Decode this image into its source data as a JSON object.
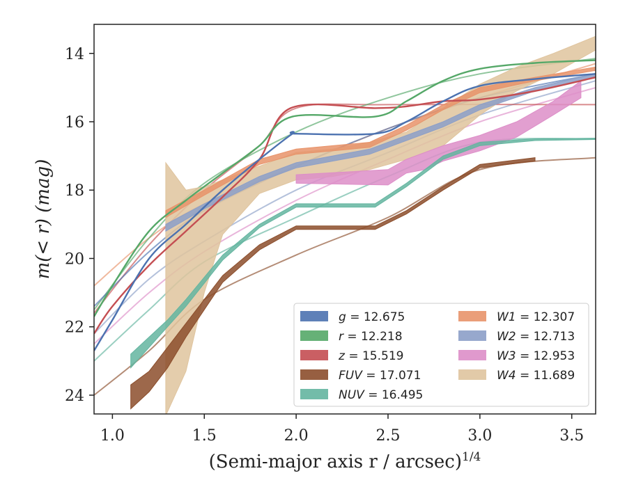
{
  "chart_data": {
    "type": "line",
    "xlabel": "(Semi-major axis r / arcsec)",
    "xlabel_sup": "1/4",
    "ylabel": "m(< r) (mag)",
    "xlim": [
      0.9,
      3.63
    ],
    "ylim": [
      24.55,
      13.15
    ],
    "y_inverted": true,
    "xticks": [
      1.0,
      1.5,
      2.0,
      2.5,
      3.0,
      3.5
    ],
    "xtick_labels": [
      "1.0",
      "1.5",
      "2.0",
      "2.5",
      "3.0",
      "3.5"
    ],
    "yticks": [
      14,
      16,
      18,
      20,
      22,
      24
    ],
    "ytick_labels": [
      "14",
      "16",
      "18",
      "20",
      "22",
      "24"
    ],
    "grid": false,
    "legend_position": "lower-right",
    "legend_columns": 2,
    "series": [
      {
        "name": "g = 12.675",
        "color": "#4c72b0",
        "profile": [
          [
            0.9,
            22.7
          ],
          [
            1.0,
            21.8
          ],
          [
            1.2,
            20.0
          ],
          [
            1.4,
            19.0
          ],
          [
            1.6,
            18.0
          ],
          [
            1.8,
            17.1
          ],
          [
            1.98,
            16.35
          ],
          [
            2.0,
            16.35
          ],
          [
            2.43,
            16.35
          ],
          [
            2.6,
            16.0
          ],
          [
            2.8,
            15.4
          ],
          [
            3.0,
            14.95
          ],
          [
            3.3,
            14.75
          ],
          [
            3.63,
            14.6
          ]
        ],
        "model": [
          [
            0.9,
            21.4
          ],
          [
            1.2,
            19.8
          ],
          [
            1.5,
            18.6
          ],
          [
            2.0,
            17.3
          ],
          [
            2.5,
            16.2
          ],
          [
            3.0,
            15.3
          ],
          [
            3.63,
            14.6
          ]
        ]
      },
      {
        "name": "r = 12.218",
        "color": "#55a868",
        "profile": [
          [
            0.9,
            21.7
          ],
          [
            1.0,
            20.8
          ],
          [
            1.2,
            19.2
          ],
          [
            1.4,
            18.3
          ],
          [
            1.6,
            17.5
          ],
          [
            1.8,
            16.7
          ],
          [
            1.98,
            15.85
          ],
          [
            2.43,
            15.85
          ],
          [
            2.6,
            15.4
          ],
          [
            2.8,
            14.8
          ],
          [
            3.0,
            14.45
          ],
          [
            3.3,
            14.28
          ],
          [
            3.63,
            14.2
          ]
        ],
        "model": [
          [
            0.9,
            21.5
          ],
          [
            1.2,
            19.4
          ],
          [
            1.5,
            17.8
          ],
          [
            2.0,
            16.3
          ],
          [
            2.5,
            15.3
          ],
          [
            3.0,
            14.6
          ],
          [
            3.63,
            14.15
          ]
        ]
      },
      {
        "name": "z = 15.519",
        "color": "#c44e52",
        "profile": [
          [
            0.9,
            22.2
          ],
          [
            1.0,
            21.4
          ],
          [
            1.2,
            20.2
          ],
          [
            1.4,
            19.2
          ],
          [
            1.6,
            18.2
          ],
          [
            1.8,
            17.1
          ],
          [
            1.97,
            15.6
          ],
          [
            2.43,
            15.6
          ],
          [
            2.6,
            15.55
          ],
          [
            2.8,
            15.4
          ],
          [
            3.0,
            15.35
          ],
          [
            3.3,
            15.1
          ],
          [
            3.63,
            14.7
          ]
        ],
        "model": [
          [
            0.9,
            21.6
          ],
          [
            1.2,
            19.6
          ],
          [
            1.5,
            18.0
          ],
          [
            1.8,
            16.7
          ],
          [
            2.0,
            15.6
          ],
          [
            2.5,
            15.5
          ],
          [
            3.63,
            15.5
          ]
        ]
      },
      {
        "name": "FUV = 17.071",
        "color": "#8c4e2c",
        "band": [
          [
            1.1,
            23.7,
            24.4
          ],
          [
            1.2,
            23.3,
            23.9
          ],
          [
            1.3,
            22.6,
            23.2
          ],
          [
            1.4,
            21.9,
            22.3
          ],
          [
            1.5,
            21.2,
            21.5
          ],
          [
            1.6,
            20.5,
            20.7
          ],
          [
            1.8,
            19.6,
            19.75
          ],
          [
            2.0,
            19.05,
            19.15
          ],
          [
            2.43,
            19.05,
            19.15
          ],
          [
            2.6,
            18.6,
            18.7
          ],
          [
            2.8,
            17.9,
            18.0
          ],
          [
            3.0,
            17.25,
            17.35
          ],
          [
            3.3,
            17.05,
            17.15
          ]
        ],
        "model": [
          [
            0.9,
            24.0
          ],
          [
            1.2,
            22.7
          ],
          [
            1.5,
            21.2
          ],
          [
            2.0,
            19.9
          ],
          [
            2.5,
            18.8
          ],
          [
            3.0,
            17.4
          ],
          [
            3.63,
            17.05
          ]
        ]
      },
      {
        "name": "NUV = 16.495",
        "color": "#64b5a0",
        "band": [
          [
            1.1,
            22.8,
            23.2
          ],
          [
            1.3,
            21.8,
            22.0
          ],
          [
            1.4,
            21.2,
            21.4
          ],
          [
            1.6,
            19.9,
            20.05
          ],
          [
            1.8,
            19.0,
            19.1
          ],
          [
            2.0,
            18.4,
            18.5
          ],
          [
            2.43,
            18.4,
            18.5
          ],
          [
            2.6,
            17.8,
            17.9
          ],
          [
            2.8,
            17.0,
            17.1
          ],
          [
            3.0,
            16.6,
            16.7
          ],
          [
            3.3,
            16.5,
            16.55
          ],
          [
            3.63,
            16.48,
            16.52
          ]
        ],
        "model": [
          [
            0.9,
            23.0
          ],
          [
            1.2,
            21.5
          ],
          [
            1.5,
            20.1
          ],
          [
            2.0,
            18.8
          ],
          [
            2.5,
            17.6
          ],
          [
            3.0,
            16.6
          ],
          [
            3.63,
            16.5
          ]
        ]
      },
      {
        "name": "W1 = 12.307",
        "color": "#e8936a",
        "band": [
          [
            1.29,
            18.6,
            18.8
          ],
          [
            1.5,
            18.0,
            18.15
          ],
          [
            1.8,
            17.1,
            17.25
          ],
          [
            2.0,
            16.8,
            16.95
          ],
          [
            2.4,
            16.6,
            16.75
          ],
          [
            2.6,
            16.1,
            16.25
          ],
          [
            2.8,
            15.5,
            15.65
          ],
          [
            3.0,
            15.0,
            15.15
          ],
          [
            3.3,
            14.7,
            14.8
          ],
          [
            3.63,
            14.4,
            14.5
          ]
        ],
        "model": [
          [
            0.9,
            20.8
          ],
          [
            1.2,
            19.4
          ],
          [
            1.5,
            18.4
          ],
          [
            2.0,
            17.3
          ],
          [
            2.5,
            16.2
          ],
          [
            3.0,
            15.3
          ],
          [
            3.63,
            14.3
          ]
        ]
      },
      {
        "name": "W2 = 12.713",
        "color": "#8c9fc8",
        "band": [
          [
            1.29,
            19.0,
            19.2
          ],
          [
            1.5,
            18.4,
            18.55
          ],
          [
            1.8,
            17.6,
            17.75
          ],
          [
            2.0,
            17.2,
            17.35
          ],
          [
            2.4,
            16.8,
            16.95
          ],
          [
            2.8,
            16.0,
            16.15
          ],
          [
            3.0,
            15.5,
            15.65
          ],
          [
            3.3,
            15.0,
            15.1
          ],
          [
            3.63,
            14.6,
            14.7
          ]
        ],
        "model": [
          [
            0.9,
            22.2
          ],
          [
            1.2,
            20.6
          ],
          [
            1.5,
            19.5
          ],
          [
            2.0,
            18.0
          ],
          [
            2.5,
            16.9
          ],
          [
            3.0,
            15.8
          ],
          [
            3.63,
            14.8
          ]
        ]
      },
      {
        "name": "W3 = 12.953",
        "color": "#dd8ec8",
        "band": [
          [
            2.0,
            17.55,
            17.8
          ],
          [
            2.5,
            17.4,
            17.85
          ],
          [
            2.6,
            17.1,
            17.5
          ],
          [
            2.7,
            16.9,
            17.4
          ],
          [
            2.8,
            16.7,
            17.15
          ],
          [
            3.0,
            16.4,
            16.85
          ],
          [
            3.2,
            16.0,
            16.45
          ],
          [
            3.4,
            15.4,
            15.8
          ],
          [
            3.55,
            14.8,
            15.3
          ]
        ],
        "model": [
          [
            0.9,
            22.5
          ],
          [
            1.2,
            21.0
          ],
          [
            1.5,
            19.8
          ],
          [
            2.0,
            18.3
          ],
          [
            2.5,
            17.1
          ],
          [
            3.0,
            16.0
          ],
          [
            3.63,
            15.0
          ]
        ]
      },
      {
        "name": "W4 = 11.689",
        "color": "#dfc49e",
        "band": [
          [
            1.29,
            17.2,
            24.6
          ],
          [
            1.4,
            18.0,
            23.3
          ],
          [
            1.5,
            17.9,
            21.0
          ],
          [
            1.6,
            17.7,
            19.3
          ],
          [
            1.8,
            17.3,
            18.1
          ],
          [
            2.0,
            16.9,
            17.7
          ],
          [
            2.2,
            16.8,
            17.6
          ],
          [
            2.4,
            16.6,
            17.4
          ],
          [
            2.6,
            16.3,
            17.1
          ],
          [
            2.8,
            15.6,
            16.7
          ],
          [
            3.0,
            14.9,
            15.8
          ],
          [
            3.2,
            14.4,
            15.1
          ],
          [
            3.4,
            14.0,
            14.6
          ],
          [
            3.63,
            13.5,
            13.9
          ]
        ],
        "model": []
      }
    ],
    "legend_left": [
      {
        "prefix": "g",
        "value": " = 12.675",
        "color": "#4c72b0"
      },
      {
        "prefix": "r",
        "value": " = 12.218",
        "color": "#55a868"
      },
      {
        "prefix": "z",
        "value": " = 15.519",
        "color": "#c44e52"
      },
      {
        "prefix": "FUV",
        "value": " = 17.071",
        "color": "#8c4e2c"
      },
      {
        "prefix": "NUV",
        "value": " = 16.495",
        "color": "#64b5a0"
      }
    ],
    "legend_right": [
      {
        "prefix": "W1",
        "value": " = 12.307",
        "color": "#e8936a"
      },
      {
        "prefix": "W2",
        "value": " = 12.713",
        "color": "#8c9fc8"
      },
      {
        "prefix": "W3",
        "value": " = 12.953",
        "color": "#dd8ec8"
      },
      {
        "prefix": "W4",
        "value": " = 11.689",
        "color": "#dfc49e"
      }
    ]
  }
}
